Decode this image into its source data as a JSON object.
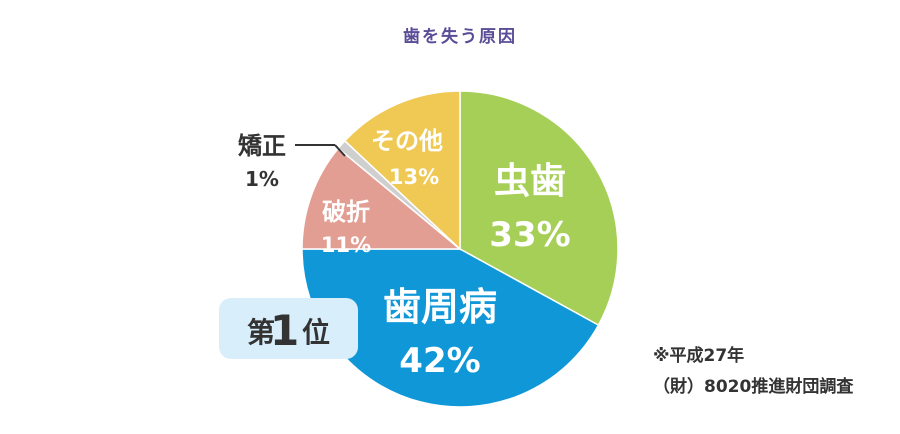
{
  "chart_data": {
    "type": "pie",
    "title": "歯を失う原因",
    "slices": [
      {
        "name": "虫歯",
        "percent_label": "33%",
        "value": 33,
        "color": "#a6cf58"
      },
      {
        "name": "歯周病",
        "percent_label": "42%",
        "value": 42,
        "color": "#0f97d8"
      },
      {
        "name": "破折",
        "percent_label": "11%",
        "value": 11,
        "color": "#e39e93"
      },
      {
        "name": "矯正",
        "percent_label": "1%",
        "value": 1,
        "color": "#cfcfcf"
      },
      {
        "name": "その他",
        "percent_label": "13%",
        "value": 13,
        "color": "#efc954"
      }
    ]
  },
  "rank_badge": {
    "prefix": "第",
    "number": "1",
    "suffix": "位",
    "background": "#d8effb"
  },
  "source_note": {
    "line1": "※平成27年",
    "line2": "（財）8020推進財団調査"
  }
}
